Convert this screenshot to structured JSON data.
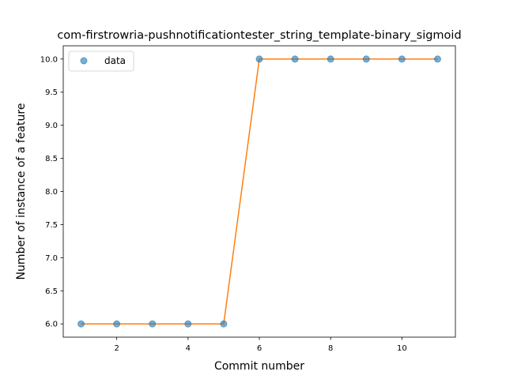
{
  "chart_data": {
    "type": "line",
    "title": "com-firstrowria-pushnotificationtester_string_template-binary_sigmoid",
    "xlabel": "Commit number",
    "ylabel": "Number of instance of a feature",
    "x": [
      1,
      2,
      3,
      4,
      5,
      6,
      7,
      8,
      9,
      10,
      11
    ],
    "series": [
      {
        "name": "data",
        "style": "markers",
        "color": "#1f77b4",
        "values": [
          6,
          6,
          6,
          6,
          6,
          10,
          10,
          10,
          10,
          10,
          10
        ]
      },
      {
        "style": "line",
        "color": "#ff7f0e",
        "values": [
          6,
          6,
          6,
          6,
          6,
          10,
          10,
          10,
          10,
          10,
          10
        ]
      }
    ],
    "xlim": [
      0.5,
      11.5
    ],
    "ylim": [
      5.8,
      10.2
    ],
    "xticks": [
      2,
      4,
      6,
      8,
      10
    ],
    "xtick_labels": [
      "2",
      "4",
      "6",
      "8",
      "10"
    ],
    "yticks": [
      6.0,
      6.5,
      7.0,
      7.5,
      8.0,
      8.5,
      9.0,
      9.5,
      10.0
    ],
    "ytick_labels": [
      "6.0",
      "6.5",
      "7.0",
      "7.5",
      "8.0",
      "8.5",
      "9.0",
      "9.5",
      "10.0"
    ],
    "grid": false,
    "legend_position": "top-left"
  }
}
